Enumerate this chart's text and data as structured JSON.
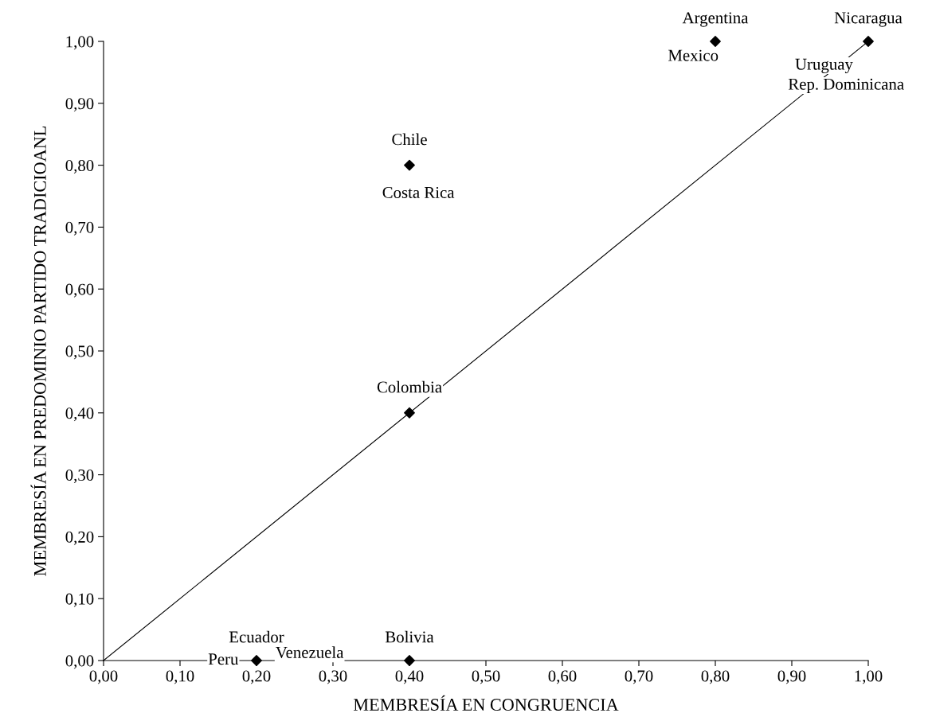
{
  "chart_data": {
    "type": "scatter",
    "xlabel": "MEMBRESÍA EN CONGRUENCIA",
    "ylabel": "MEMBRESÍA EN PREDOMINIO PARTIDO TRADICIOANL",
    "series": [
      {
        "type": "line",
        "x": [
          0,
          1
        ],
        "values": [
          0,
          1
        ],
        "color": "#000000",
        "marker": "none"
      },
      {
        "x": [
          0.2,
          0.4,
          0.4,
          0.4,
          0.8,
          1.0
        ],
        "values": [
          0,
          0,
          0.4,
          0.8,
          1.0,
          1.0
        ],
        "color": "#000000",
        "marker": "diamond"
      }
    ],
    "annotations": [
      {
        "text": "Argentina",
        "x": 0.8,
        "y": 1.0
      },
      {
        "text": "Mexico",
        "x": 0.8,
        "y": 1.0
      },
      {
        "text": "Nicaragua",
        "x": 1.0,
        "y": 1.0
      },
      {
        "text": "Uruguay",
        "x": 1.0,
        "y": 1.0
      },
      {
        "text": "Rep. Dominicana",
        "x": 1.0,
        "y": 1.0
      },
      {
        "text": "Chile",
        "x": 0.4,
        "y": 0.8
      },
      {
        "text": "Costa Rica",
        "x": 0.4,
        "y": 0.8
      },
      {
        "text": "Colombia",
        "x": 0.4,
        "y": 0.4
      },
      {
        "text": "Ecuador",
        "x": 0.2,
        "y": 0
      },
      {
        "text": "Peru",
        "x": 0.2,
        "y": 0
      },
      {
        "text": "Venezuela",
        "x": 0.2,
        "y": 0
      },
      {
        "text": "Bolivia",
        "x": 0.4,
        "y": 0
      }
    ],
    "xlim": [
      0,
      1
    ],
    "ylim": [
      0,
      1
    ],
    "xticks": [
      {
        "value": 0,
        "label": "0,00"
      },
      {
        "value": 0.1,
        "label": "0,10"
      },
      {
        "value": 0.2,
        "label": "0,20"
      },
      {
        "value": 0.3,
        "label": "0,30"
      },
      {
        "value": 0.4,
        "label": "0,40"
      },
      {
        "value": 0.5,
        "label": "0,50"
      },
      {
        "value": 0.6,
        "label": "0,60"
      },
      {
        "value": 0.7,
        "label": "0,70"
      },
      {
        "value": 0.8,
        "label": "0,80"
      },
      {
        "value": 0.9,
        "label": "0,90"
      },
      {
        "value": 1.0,
        "label": "1,00"
      }
    ],
    "yticks": [
      {
        "value": 0,
        "label": "0,00"
      },
      {
        "value": 0.1,
        "label": "0,10"
      },
      {
        "value": 0.2,
        "label": "0,20"
      },
      {
        "value": 0.3,
        "label": "0,30"
      },
      {
        "value": 0.4,
        "label": "0,40"
      },
      {
        "value": 0.5,
        "label": "0,50"
      },
      {
        "value": 0.6,
        "label": "0,60"
      },
      {
        "value": 0.7,
        "label": "0,70"
      },
      {
        "value": 0.8,
        "label": "0,80"
      },
      {
        "value": 0.9,
        "label": "0,90"
      },
      {
        "value": 1.0,
        "label": "1,00"
      }
    ],
    "grid": false,
    "legend": false
  }
}
